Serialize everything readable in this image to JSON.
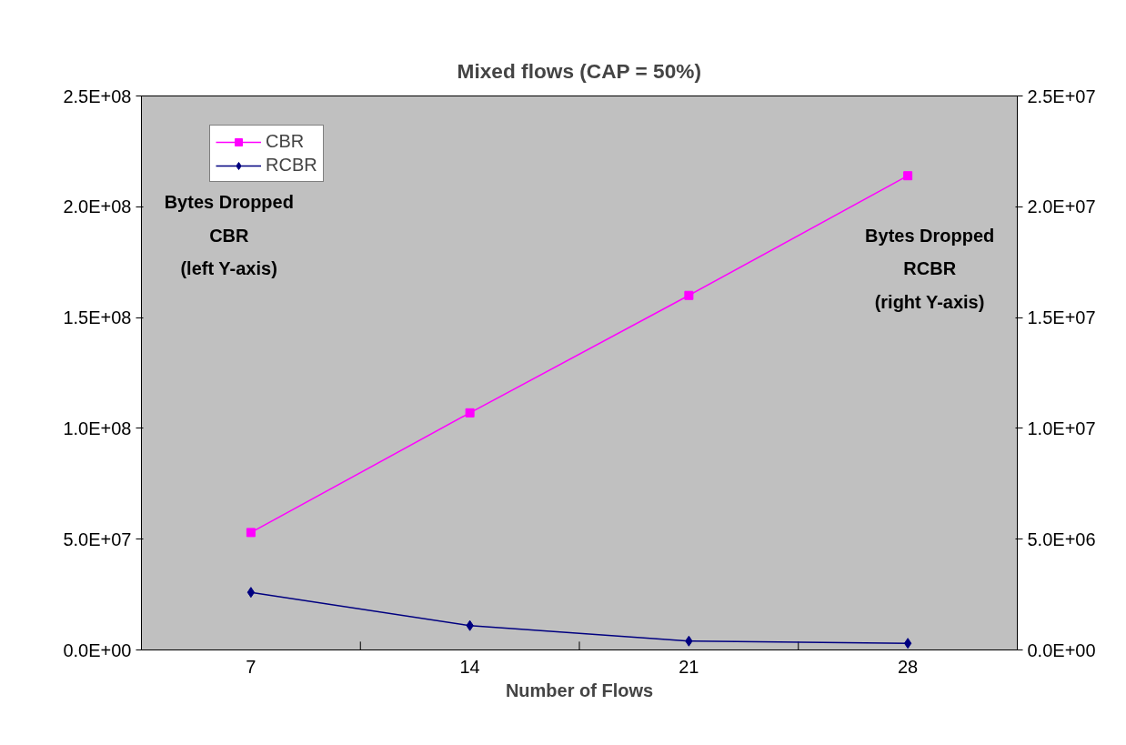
{
  "chart_data": {
    "type": "line",
    "title": "Mixed flows (CAP = 50%)",
    "xlabel": "Number of Flows",
    "ylabel": "Bytes Dropped\nCBR\n(left Y-axis)",
    "y2label": "Bytes Dropped\nRCBR\n(right Y-axis)",
    "categories": [
      "7",
      "14",
      "21",
      "28"
    ],
    "series": [
      {
        "name": "CBR",
        "color": "#ff00ff",
        "marker": "square",
        "values": [
          53000000,
          107000000,
          160000000,
          214000000
        ]
      },
      {
        "name": "RCBR",
        "color": "#000080",
        "marker": "diamond",
        "axis": "y2",
        "values": [
          2600000,
          1100000,
          400000,
          300000
        ]
      }
    ],
    "ylim": [
      0,
      250000000
    ],
    "yticks": [
      {
        "value": 0,
        "label": "0.0E+00"
      },
      {
        "value": 50000000,
        "label": "5.0E+07"
      },
      {
        "value": 100000000,
        "label": "1.0E+08"
      },
      {
        "value": 150000000,
        "label": "1.5E+08"
      },
      {
        "value": 200000000,
        "label": "2.0E+08"
      },
      {
        "value": 250000000,
        "label": "2.5E+08"
      }
    ],
    "y2lim": [
      0,
      25000000
    ],
    "y2ticks": [
      {
        "value": 0,
        "label": "0.0E+00"
      },
      {
        "value": 5000000,
        "label": "5.0E+06"
      },
      {
        "value": 10000000,
        "label": "1.0E+07"
      },
      {
        "value": 15000000,
        "label": "1.5E+07"
      },
      {
        "value": 20000000,
        "label": "2.0E+07"
      },
      {
        "value": 25000000,
        "label": "2.5E+07"
      }
    ],
    "grid": false,
    "legend": "top left",
    "line_style": "solid"
  }
}
